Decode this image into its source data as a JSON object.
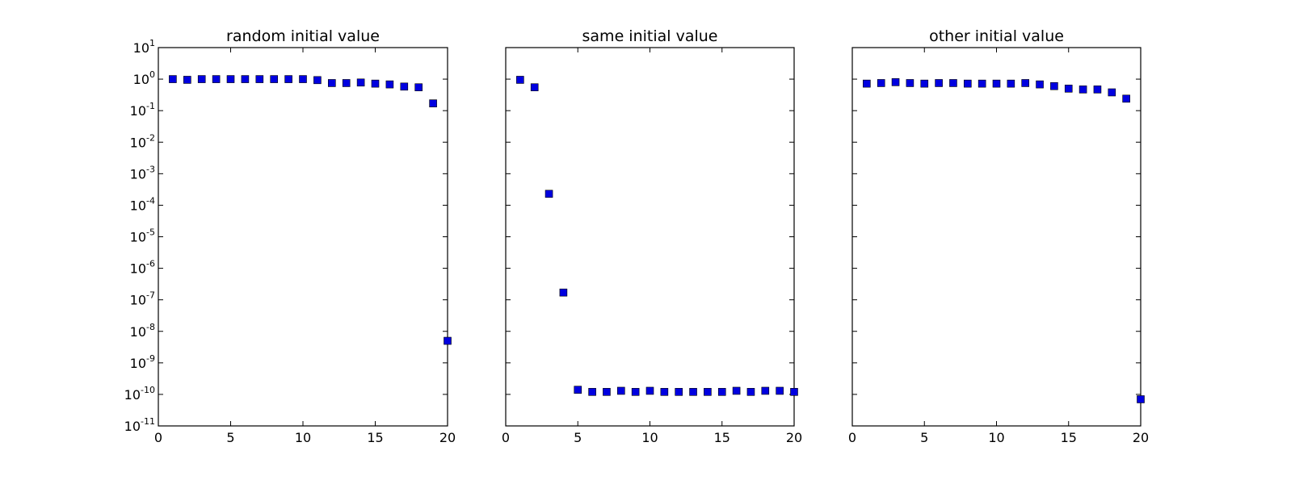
{
  "chart_data": [
    {
      "type": "scatter",
      "title": "random initial value",
      "xlabel": "",
      "ylabel": "",
      "xlim": [
        0,
        20
      ],
      "ylim": [
        1e-11,
        10
      ],
      "yscale": "log",
      "grid": false,
      "marker": "square",
      "x_ticks": [
        "0",
        "5",
        "10",
        "15",
        "20"
      ],
      "y_ticks": [
        {
          "base": "10",
          "exp": "1"
        },
        {
          "base": "10",
          "exp": "0"
        },
        {
          "base": "10",
          "exp": "-1"
        },
        {
          "base": "10",
          "exp": "-2"
        },
        {
          "base": "10",
          "exp": "-3"
        },
        {
          "base": "10",
          "exp": "-4"
        },
        {
          "base": "10",
          "exp": "-5"
        },
        {
          "base": "10",
          "exp": "-6"
        },
        {
          "base": "10",
          "exp": "-7"
        },
        {
          "base": "10",
          "exp": "-8"
        },
        {
          "base": "10",
          "exp": "-9"
        },
        {
          "base": "10",
          "exp": "-10"
        },
        {
          "base": "10",
          "exp": "-11"
        }
      ],
      "y_tick_labels_shown": true,
      "series": [
        {
          "color": "#0000e0",
          "x": [
            1,
            2,
            3,
            4,
            5,
            6,
            7,
            8,
            9,
            10,
            11,
            12,
            13,
            14,
            15,
            16,
            17,
            18,
            19,
            20
          ],
          "y": [
            1.0,
            0.95,
            1.0,
            1.0,
            1.0,
            1.0,
            1.0,
            1.0,
            1.0,
            1.0,
            0.93,
            0.75,
            0.75,
            0.78,
            0.72,
            0.68,
            0.58,
            0.55,
            0.17,
            5e-09
          ]
        }
      ]
    },
    {
      "type": "scatter",
      "title": "same initial value",
      "xlabel": "",
      "ylabel": "",
      "xlim": [
        0,
        20
      ],
      "ylim": [
        1e-11,
        10
      ],
      "yscale": "log",
      "grid": false,
      "marker": "square",
      "x_ticks": [
        "0",
        "5",
        "10",
        "15",
        "20"
      ],
      "y_tick_labels_shown": false,
      "series": [
        {
          "color": "#0000e0",
          "x": [
            1,
            2,
            3,
            4,
            5,
            6,
            7,
            8,
            9,
            10,
            11,
            12,
            13,
            14,
            15,
            16,
            17,
            18,
            19,
            20
          ],
          "y": [
            0.95,
            0.55,
            0.00023,
            1.7e-07,
            1.4e-10,
            1.2e-10,
            1.2e-10,
            1.3e-10,
            1.2e-10,
            1.3e-10,
            1.2e-10,
            1.2e-10,
            1.2e-10,
            1.2e-10,
            1.2e-10,
            1.3e-10,
            1.2e-10,
            1.3e-10,
            1.3e-10,
            1.2e-10
          ]
        }
      ]
    },
    {
      "type": "scatter",
      "title": "other initial value",
      "xlabel": "",
      "ylabel": "",
      "xlim": [
        0,
        20
      ],
      "ylim": [
        1e-11,
        10
      ],
      "yscale": "log",
      "grid": false,
      "marker": "square",
      "x_ticks": [
        "0",
        "5",
        "10",
        "15",
        "20"
      ],
      "y_tick_labels_shown": false,
      "series": [
        {
          "color": "#0000e0",
          "x": [
            1,
            2,
            3,
            4,
            5,
            6,
            7,
            8,
            9,
            10,
            11,
            12,
            13,
            14,
            15,
            16,
            17,
            18,
            19,
            20
          ],
          "y": [
            0.72,
            0.75,
            0.8,
            0.75,
            0.72,
            0.75,
            0.75,
            0.72,
            0.72,
            0.72,
            0.72,
            0.75,
            0.68,
            0.6,
            0.5,
            0.47,
            0.47,
            0.38,
            0.24,
            7e-11
          ]
        }
      ]
    }
  ]
}
